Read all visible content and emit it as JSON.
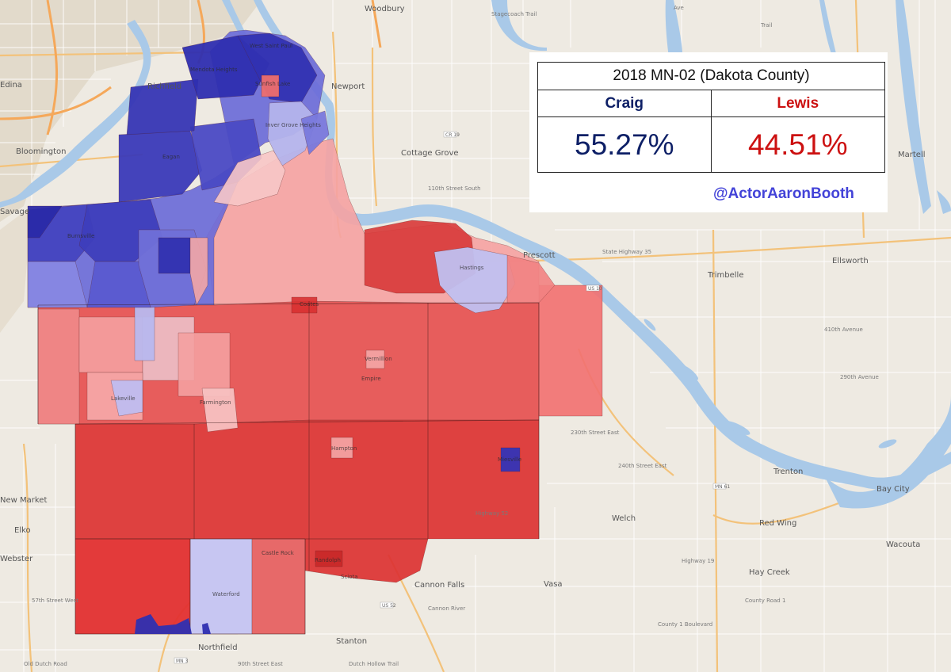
{
  "results": {
    "title": "2018 MN-02 (Dakota County)",
    "candidates": [
      {
        "name": "Craig",
        "percent": "55.27%",
        "color": "#0d1f66"
      },
      {
        "name": "Lewis",
        "percent": "44.51%",
        "color": "#cc1111"
      }
    ]
  },
  "credit": "@ActorAaronBooth",
  "places": {
    "woodbury": "Woodbury",
    "richfield": "Richfield",
    "edina": "Edina",
    "bloomington": "Bloomington",
    "savage": "Savage",
    "cottage_grove": "Cottage Grove",
    "newport": "Newport",
    "west_saint_paul": "West Saint Paul",
    "sunfish_lake": "Sunfish Lake",
    "prescott": "Prescott",
    "hastings": "Hastings",
    "trimbelle": "Trimbelle",
    "ellsworth": "Ellsworth",
    "martell": "Martell",
    "elko": "Elko",
    "new_market": "New Market",
    "webster": "Webster",
    "welch": "Welch",
    "red_wing": "Red Wing",
    "bay_city": "Bay City",
    "trenton": "Trenton",
    "wacouta": "Wacouta",
    "hay_creek": "Hay Creek",
    "cannon_falls": "Cannon Falls",
    "vasa": "Vasa",
    "stanton": "Stanton",
    "northfield": "Northfield",
    "miesville": "Miesville",
    "randolph": "Randolph",
    "hampton": "Hampton",
    "vermillion": "Vermillion",
    "farmington": "Farmington",
    "lakeville": "Lakeville",
    "coates": "Coates",
    "burnsville": "Burnsville",
    "eagan": "Eagan",
    "castle_rock": "Castle Rock",
    "waterford": "Waterford",
    "sciota": "Sciota",
    "empire": "Empire",
    "inver_grove_heights": "Inver Grove Heights",
    "mendota_heights": "Mendota Heights"
  },
  "colors": {
    "strong_craig": "#3a3ab8",
    "mid_craig": "#6a6ad8",
    "lean_craig": "#b8b8ee",
    "lean_lewis": "#f4a0a0",
    "mid_lewis": "#e86262",
    "strong_lewis": "#dc3232",
    "water": "#a9c9e8"
  }
}
